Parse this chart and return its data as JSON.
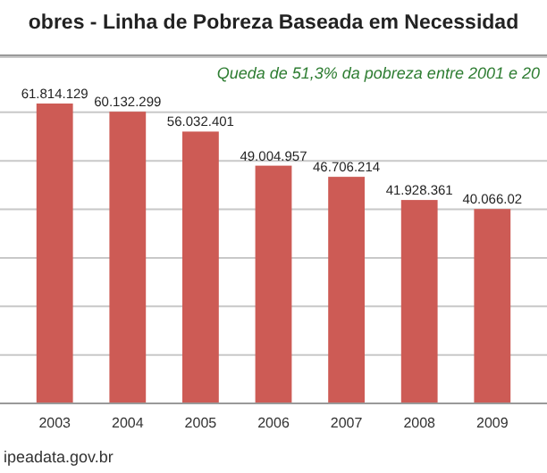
{
  "chart_data": {
    "type": "bar",
    "title": "obres - Linha de Pobreza Baseada em Necessidad",
    "annotations": [
      "Queda de 51,3% da pobreza entre 2001 e 20",
      "ipeadata.gov.br"
    ],
    "categories": [
      "2003",
      "2004",
      "2005",
      "2006",
      "2007",
      "2008",
      "2009"
    ],
    "values": [
      61814129,
      60132299,
      56032401,
      49004957,
      46706214,
      41928361,
      40066020
    ],
    "value_labels": [
      "61.814.129",
      "60.132.299",
      "56.032.401",
      "49.004.957",
      "46.706.214",
      "41.928.361",
      "40.066.02"
    ],
    "color": "#cd5b55",
    "grid": "y"
  }
}
